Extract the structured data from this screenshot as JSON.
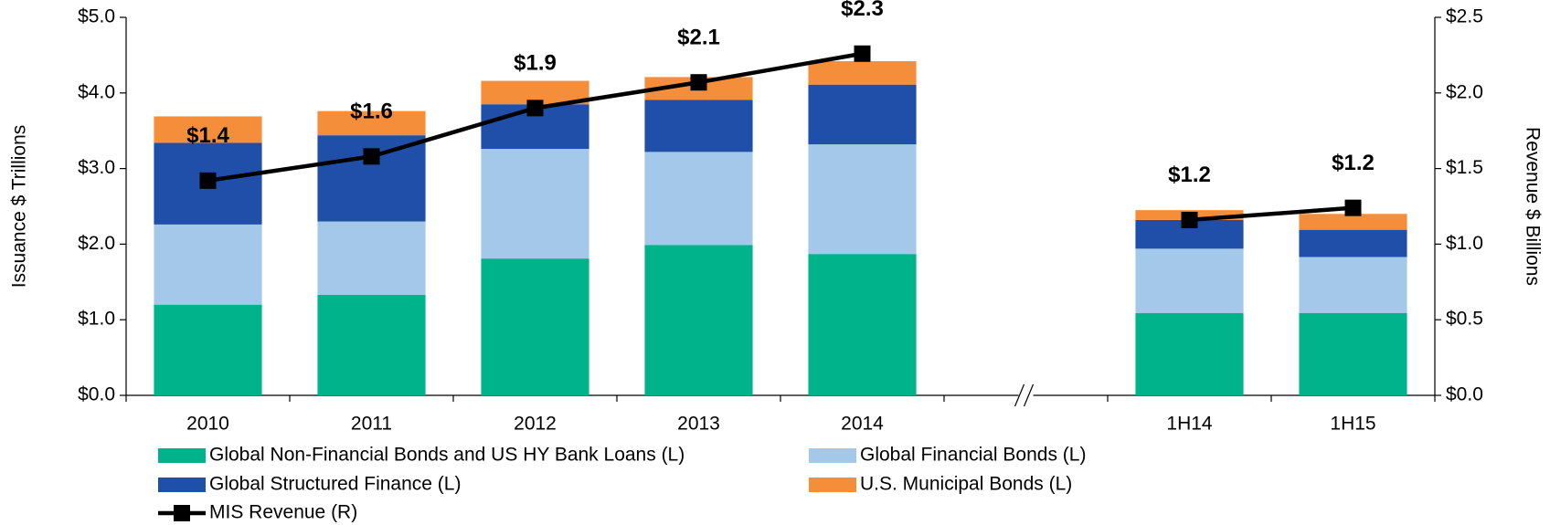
{
  "chart_data": {
    "type": "bar",
    "stacked": true,
    "ylabel": "Issuance $ Trillions",
    "y2label": "Revenue $ Billions",
    "categories": [
      "2010",
      "2011",
      "2012",
      "2013",
      "2014",
      null,
      "1H14",
      "1H15"
    ],
    "series": [
      {
        "name": "Global Non-Financial Bonds and US HY Bank Loans (L)",
        "color": "#00b38a",
        "values": [
          1.2,
          1.33,
          1.81,
          1.99,
          1.87,
          null,
          1.09,
          1.09
        ]
      },
      {
        "name": "Global Financial Bonds (L)",
        "color": "#a3c8ea",
        "values": [
          1.06,
          0.97,
          1.45,
          1.23,
          1.45,
          null,
          0.85,
          0.74
        ]
      },
      {
        "name": "Global Structured Finance (L)",
        "color": "#1f4fa8",
        "values": [
          1.08,
          1.14,
          0.59,
          0.69,
          0.79,
          null,
          0.38,
          0.36
        ]
      },
      {
        "name": "U.S. Municipal Bonds (L)",
        "color": "#f58e3a",
        "values": [
          0.35,
          0.32,
          0.31,
          0.3,
          0.31,
          null,
          0.13,
          0.21
        ]
      },
      {
        "name": "MIS Revenue (R)",
        "type": "line",
        "axis": "y2",
        "color": "#000000",
        "values": [
          1.42,
          1.58,
          1.9,
          2.07,
          2.26,
          null,
          1.16,
          1.24
        ],
        "value_labels": [
          "$1.4",
          "$1.6",
          "$1.9",
          "$2.1",
          "$2.3",
          null,
          "$1.2",
          "$1.2"
        ]
      }
    ],
    "ylim": [
      0,
      5
    ],
    "yticks": [
      {
        "value": 0,
        "label": "$0.0"
      },
      {
        "value": 1,
        "label": "$1.0"
      },
      {
        "value": 2,
        "label": "$2.0"
      },
      {
        "value": 3,
        "label": "$3.0"
      },
      {
        "value": 4,
        "label": "$4.0"
      },
      {
        "value": 5,
        "label": "$5.0"
      }
    ],
    "y2lim": [
      0,
      2.5
    ],
    "y2ticks": [
      {
        "value": 0,
        "label": "$0.0"
      },
      {
        "value": 0.5,
        "label": "$0.5"
      },
      {
        "value": 1,
        "label": "$1.0"
      },
      {
        "value": 1.5,
        "label": "$1.5"
      },
      {
        "value": 2,
        "label": "$2.0"
      },
      {
        "value": 2.5,
        "label": "$2.5"
      }
    ],
    "grid": false,
    "legend": "bottom"
  }
}
